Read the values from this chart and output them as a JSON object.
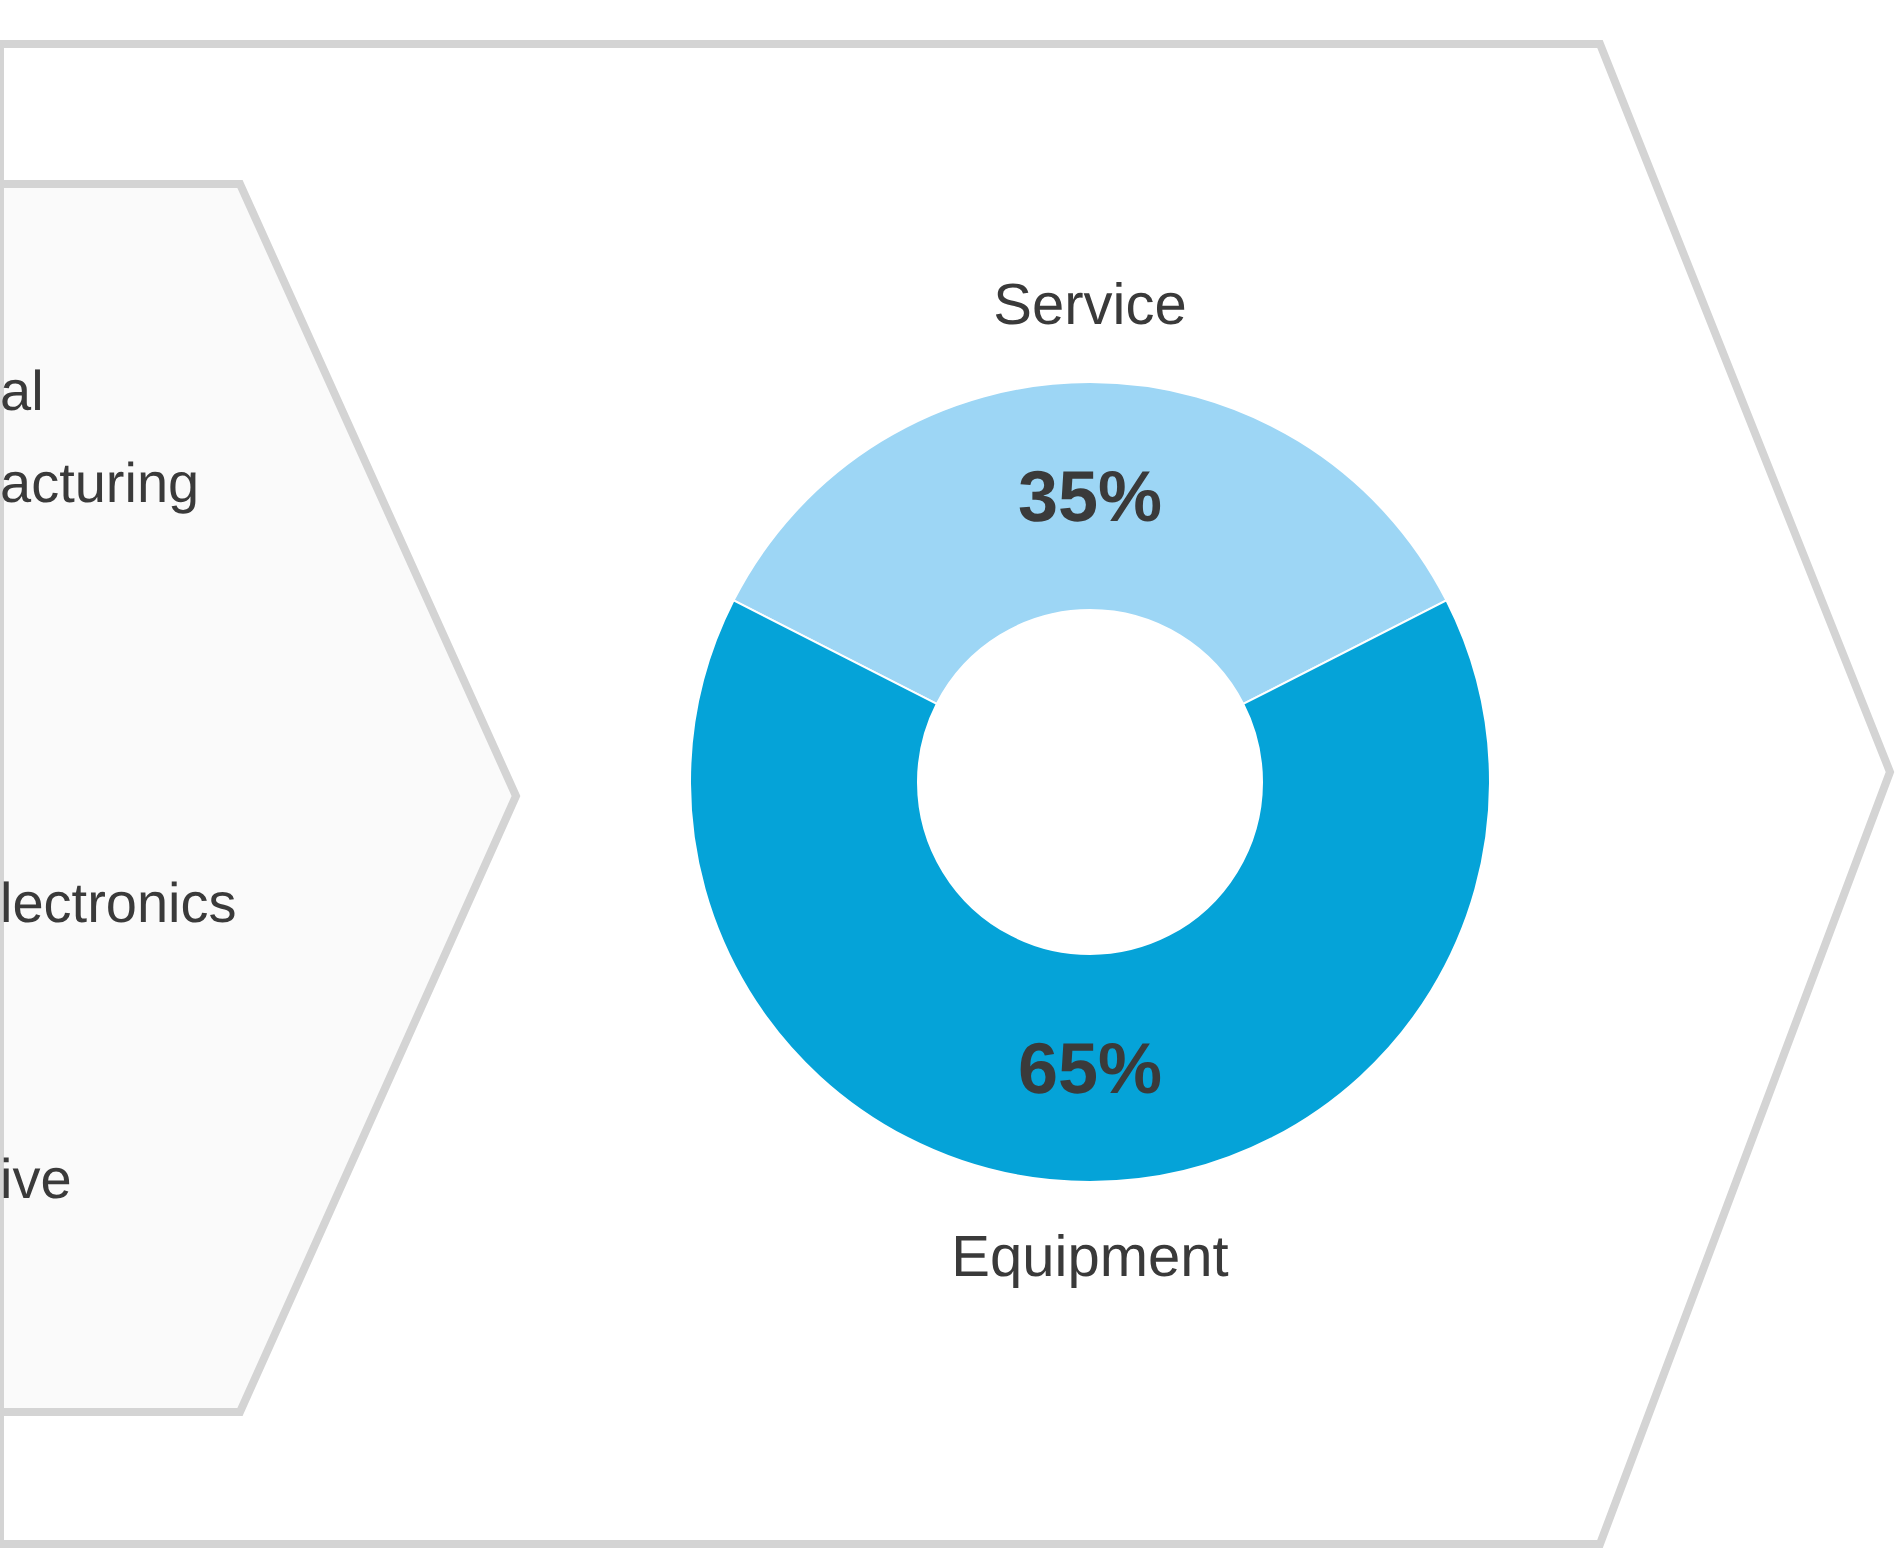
{
  "chart_data": {
    "type": "donut",
    "categories": [
      "Service",
      "Equipment"
    ],
    "values": [
      35,
      65
    ],
    "colors": [
      "#9dd6f5",
      "#05a3d8"
    ],
    "value_labels": [
      "35%",
      "65%"
    ],
    "annotations": [
      "al",
      "acturing",
      "lectronics",
      "ive"
    ]
  }
}
